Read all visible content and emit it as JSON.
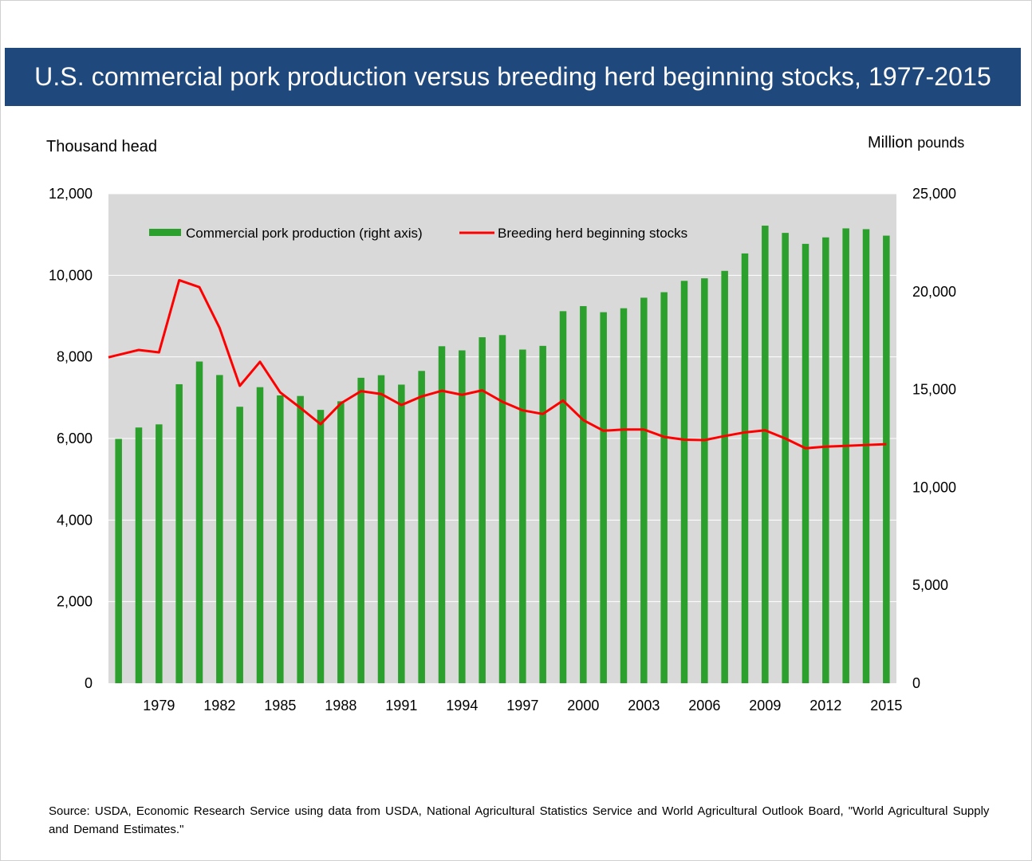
{
  "title": "U.S. commercial pork production versus breeding herd beginning stocks, 1977-2015",
  "left_axis_title": "Thousand head",
  "right_axis_title_main": "Million",
  "right_axis_title_unit": "pounds",
  "source": "Source: USDA, Economic Research Service using data from USDA, National Agricultural Statistics Service and World Agricultural Outlook Board, \"World Agricultural Supply and Demand Estimates.\"",
  "chart_data": {
    "type": "bar+line",
    "title": "U.S. commercial pork production versus breeding herd beginning stocks, 1977-2015",
    "x": [
      1977,
      1978,
      1979,
      1980,
      1981,
      1982,
      1983,
      1984,
      1985,
      1986,
      1987,
      1988,
      1989,
      1990,
      1991,
      1992,
      1993,
      1994,
      1995,
      1996,
      1997,
      1998,
      1999,
      2000,
      2001,
      2002,
      2003,
      2004,
      2005,
      2006,
      2007,
      2008,
      2009,
      2010,
      2011,
      2012,
      2013,
      2014,
      2015
    ],
    "x_tick_labels": [
      "1979",
      "1982",
      "1985",
      "1988",
      "1991",
      "1994",
      "1997",
      "2000",
      "2003",
      "2006",
      "2009",
      "2012",
      "2015"
    ],
    "left_axis": {
      "label": "Thousand head",
      "range": [
        0,
        12000
      ],
      "tick_labels": [
        "0",
        "2,000",
        "4,000",
        "6,000",
        "8,000",
        "10,000",
        "12,000"
      ]
    },
    "right_axis": {
      "label": "Million pounds",
      "range": [
        0,
        25000
      ],
      "tick_labels": [
        "0",
        "5,000",
        "10,000",
        "15,000",
        "20,000",
        "25,000"
      ]
    },
    "grid": "horizontal",
    "background": "#d9d9d9",
    "legend": "top-left inside plot",
    "series": [
      {
        "name": "Commercial pork production (right axis)",
        "type": "bar",
        "axis": "right",
        "color": "#2ca02c",
        "values": [
          12480,
          13060,
          13220,
          15270,
          16430,
          15740,
          14120,
          15120,
          14700,
          14670,
          13960,
          14400,
          15600,
          15730,
          15250,
          15950,
          17210,
          17000,
          17670,
          17780,
          17040,
          17230,
          19000,
          19260,
          18950,
          19150,
          19690,
          19970,
          20550,
          20680,
          21060,
          21950,
          23370,
          23000,
          22440,
          22770,
          23230,
          23190,
          22860
        ]
      },
      {
        "name": "Breeding herd beginning stocks",
        "type": "line",
        "axis": "left",
        "color": "#ff0000",
        "values": [
          7990,
          8170,
          8110,
          9880,
          9710,
          8710,
          7290,
          7880,
          7130,
          6750,
          6350,
          6860,
          7160,
          7090,
          6820,
          7030,
          7170,
          7070,
          7180,
          6900,
          6690,
          6600,
          6930,
          6450,
          6190,
          6220,
          6220,
          6040,
          5970,
          5960,
          6060,
          6150,
          6200,
          6000,
          5760,
          5800,
          5820,
          5840,
          5860
        ]
      }
    ]
  }
}
